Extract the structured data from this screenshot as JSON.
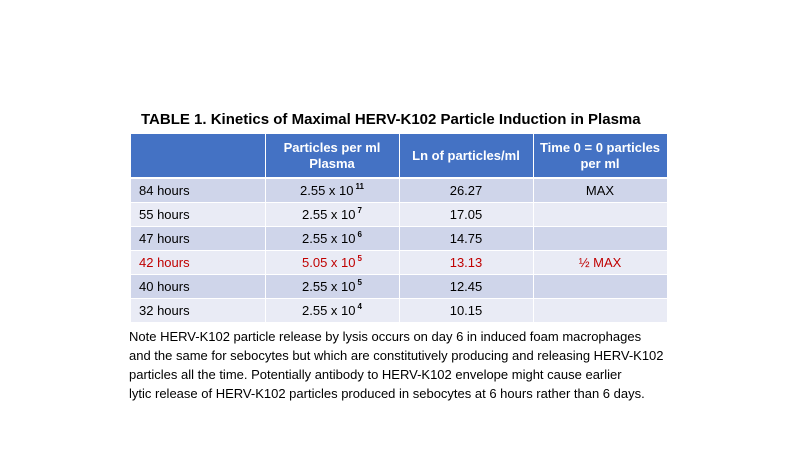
{
  "title": "TABLE 1.  Kinetics of Maximal HERV-K102 Particle Induction in Plasma",
  "headers": [
    {
      "line1": "",
      "line2": ""
    },
    {
      "line1": "Particles per ml",
      "line2": "Plasma"
    },
    {
      "line1": "Ln of particles/ml",
      "line2": ""
    },
    {
      "line1": "Time 0 = 0 particles",
      "line2": "per ml"
    }
  ],
  "rows": [
    {
      "time": "84 hours",
      "mantissa": "2.55 x 10",
      "exponent": "11",
      "ln": "26.27",
      "note": "MAX"
    },
    {
      "time": "55 hours",
      "mantissa": "2.55 x 10",
      "exponent": "7",
      "ln": "17.05",
      "note": ""
    },
    {
      "time": "47 hours",
      "mantissa": "2.55 x 10",
      "exponent": "6",
      "ln": "14.75",
      "note": ""
    },
    {
      "time": "42 hours",
      "mantissa": "5.05 x 10",
      "exponent": "5",
      "ln": "13.13",
      "note": "½  MAX"
    },
    {
      "time": "40 hours",
      "mantissa": "2.55 x 10",
      "exponent": "5",
      "ln": "12.45",
      "note": ""
    },
    {
      "time": "32 hours",
      "mantissa": "2.55 x 10",
      "exponent": "4",
      "ln": "10.15",
      "note": ""
    }
  ],
  "highlight_color": "#c00000",
  "header_color": "#4472c4",
  "note_lines": [
    "Note HERV-K102 particle release by lysis occurs on day 6 in induced foam macrophages",
    "and the same for sebocytes but which are constitutively producing and releasing HERV-K102",
    "particles all the time.  Potentially antibody to HERV-K102 envelope might cause earlier",
    "lytic release of HERV-K102 particles produced in sebocytes at 6 hours rather than 6 days."
  ]
}
